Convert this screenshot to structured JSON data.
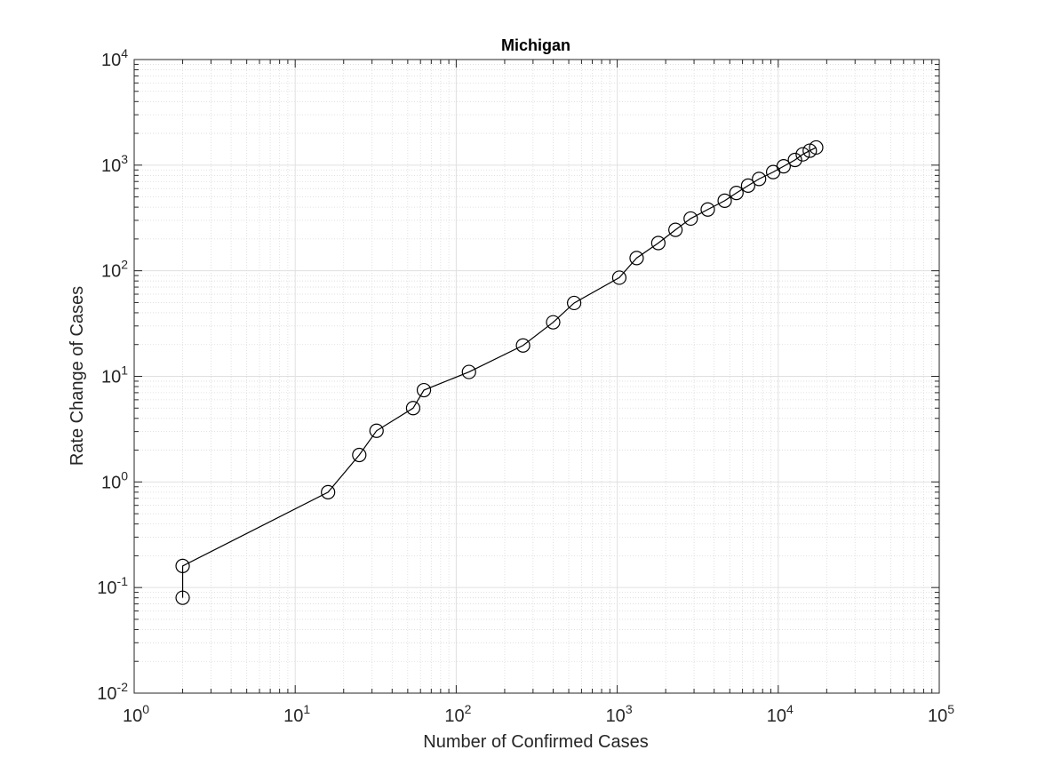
{
  "chart_data": {
    "type": "scatter",
    "title": "Michigan",
    "xlabel": "Number of Confirmed Cases",
    "ylabel": "Rate Change of Cases",
    "xscale": "log",
    "yscale": "log",
    "xlim": [
      1,
      100000
    ],
    "ylim": [
      0.01,
      10000
    ],
    "grid": true,
    "minor_grid": true,
    "x_ticks": [
      {
        "mantissa": "10",
        "exp": "0"
      },
      {
        "mantissa": "10",
        "exp": "1"
      },
      {
        "mantissa": "10",
        "exp": "2"
      },
      {
        "mantissa": "10",
        "exp": "3"
      },
      {
        "mantissa": "10",
        "exp": "4"
      },
      {
        "mantissa": "10",
        "exp": "5"
      }
    ],
    "y_ticks": [
      {
        "mantissa": "10",
        "exp": "-2"
      },
      {
        "mantissa": "10",
        "exp": "-1"
      },
      {
        "mantissa": "10",
        "exp": "0"
      },
      {
        "mantissa": "10",
        "exp": "1"
      },
      {
        "mantissa": "10",
        "exp": "2"
      },
      {
        "mantissa": "10",
        "exp": "3"
      },
      {
        "mantissa": "10",
        "exp": "4"
      }
    ],
    "series": [
      {
        "marker": "circle",
        "line": "solid",
        "color": "#000000",
        "points": [
          [
            2,
            0.08
          ],
          [
            2,
            0.16
          ],
          [
            16,
            0.8
          ],
          [
            25,
            1.8
          ],
          [
            32,
            3.05
          ],
          [
            54,
            5.0
          ],
          [
            63,
            7.4
          ],
          [
            120,
            11
          ],
          [
            260,
            19.6
          ],
          [
            400,
            32.5
          ],
          [
            540,
            49.5
          ],
          [
            1030,
            86
          ],
          [
            1320,
            132
          ],
          [
            1800,
            183
          ],
          [
            2300,
            244
          ],
          [
            2860,
            312
          ],
          [
            3650,
            380
          ],
          [
            4650,
            460
          ],
          [
            5500,
            545
          ],
          [
            6500,
            640
          ],
          [
            7600,
            740
          ],
          [
            9300,
            860
          ],
          [
            10800,
            975
          ],
          [
            12700,
            1120
          ],
          [
            14200,
            1265
          ],
          [
            15700,
            1370
          ],
          [
            17200,
            1470
          ]
        ]
      }
    ]
  }
}
